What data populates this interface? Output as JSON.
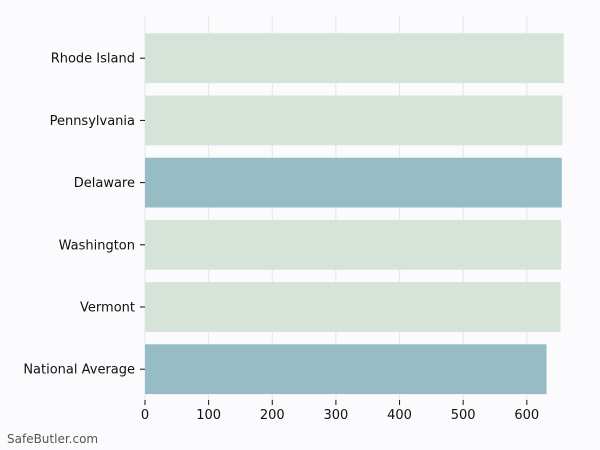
{
  "chart_data": {
    "type": "bar",
    "orientation": "horizontal",
    "categories": [
      "Rhode Island",
      "Pennsylvania",
      "Delaware",
      "Washington",
      "Vermont",
      "National Average"
    ],
    "values": [
      658,
      656,
      655,
      654,
      653,
      631
    ],
    "highlight": [
      false,
      false,
      true,
      false,
      false,
      true
    ],
    "xlim": [
      0,
      660
    ],
    "xticks": [
      0,
      100,
      200,
      300,
      400,
      500,
      600
    ],
    "grid": true,
    "title": "",
    "xlabel": "",
    "ylabel": ""
  },
  "colors": {
    "bar_default": "#d5e3d9",
    "bar_highlight": "#97bcc5",
    "grid": "#e6e6e6",
    "background": "#fbfbfe",
    "axis": "#111111"
  },
  "watermark": "SafeButler.com"
}
